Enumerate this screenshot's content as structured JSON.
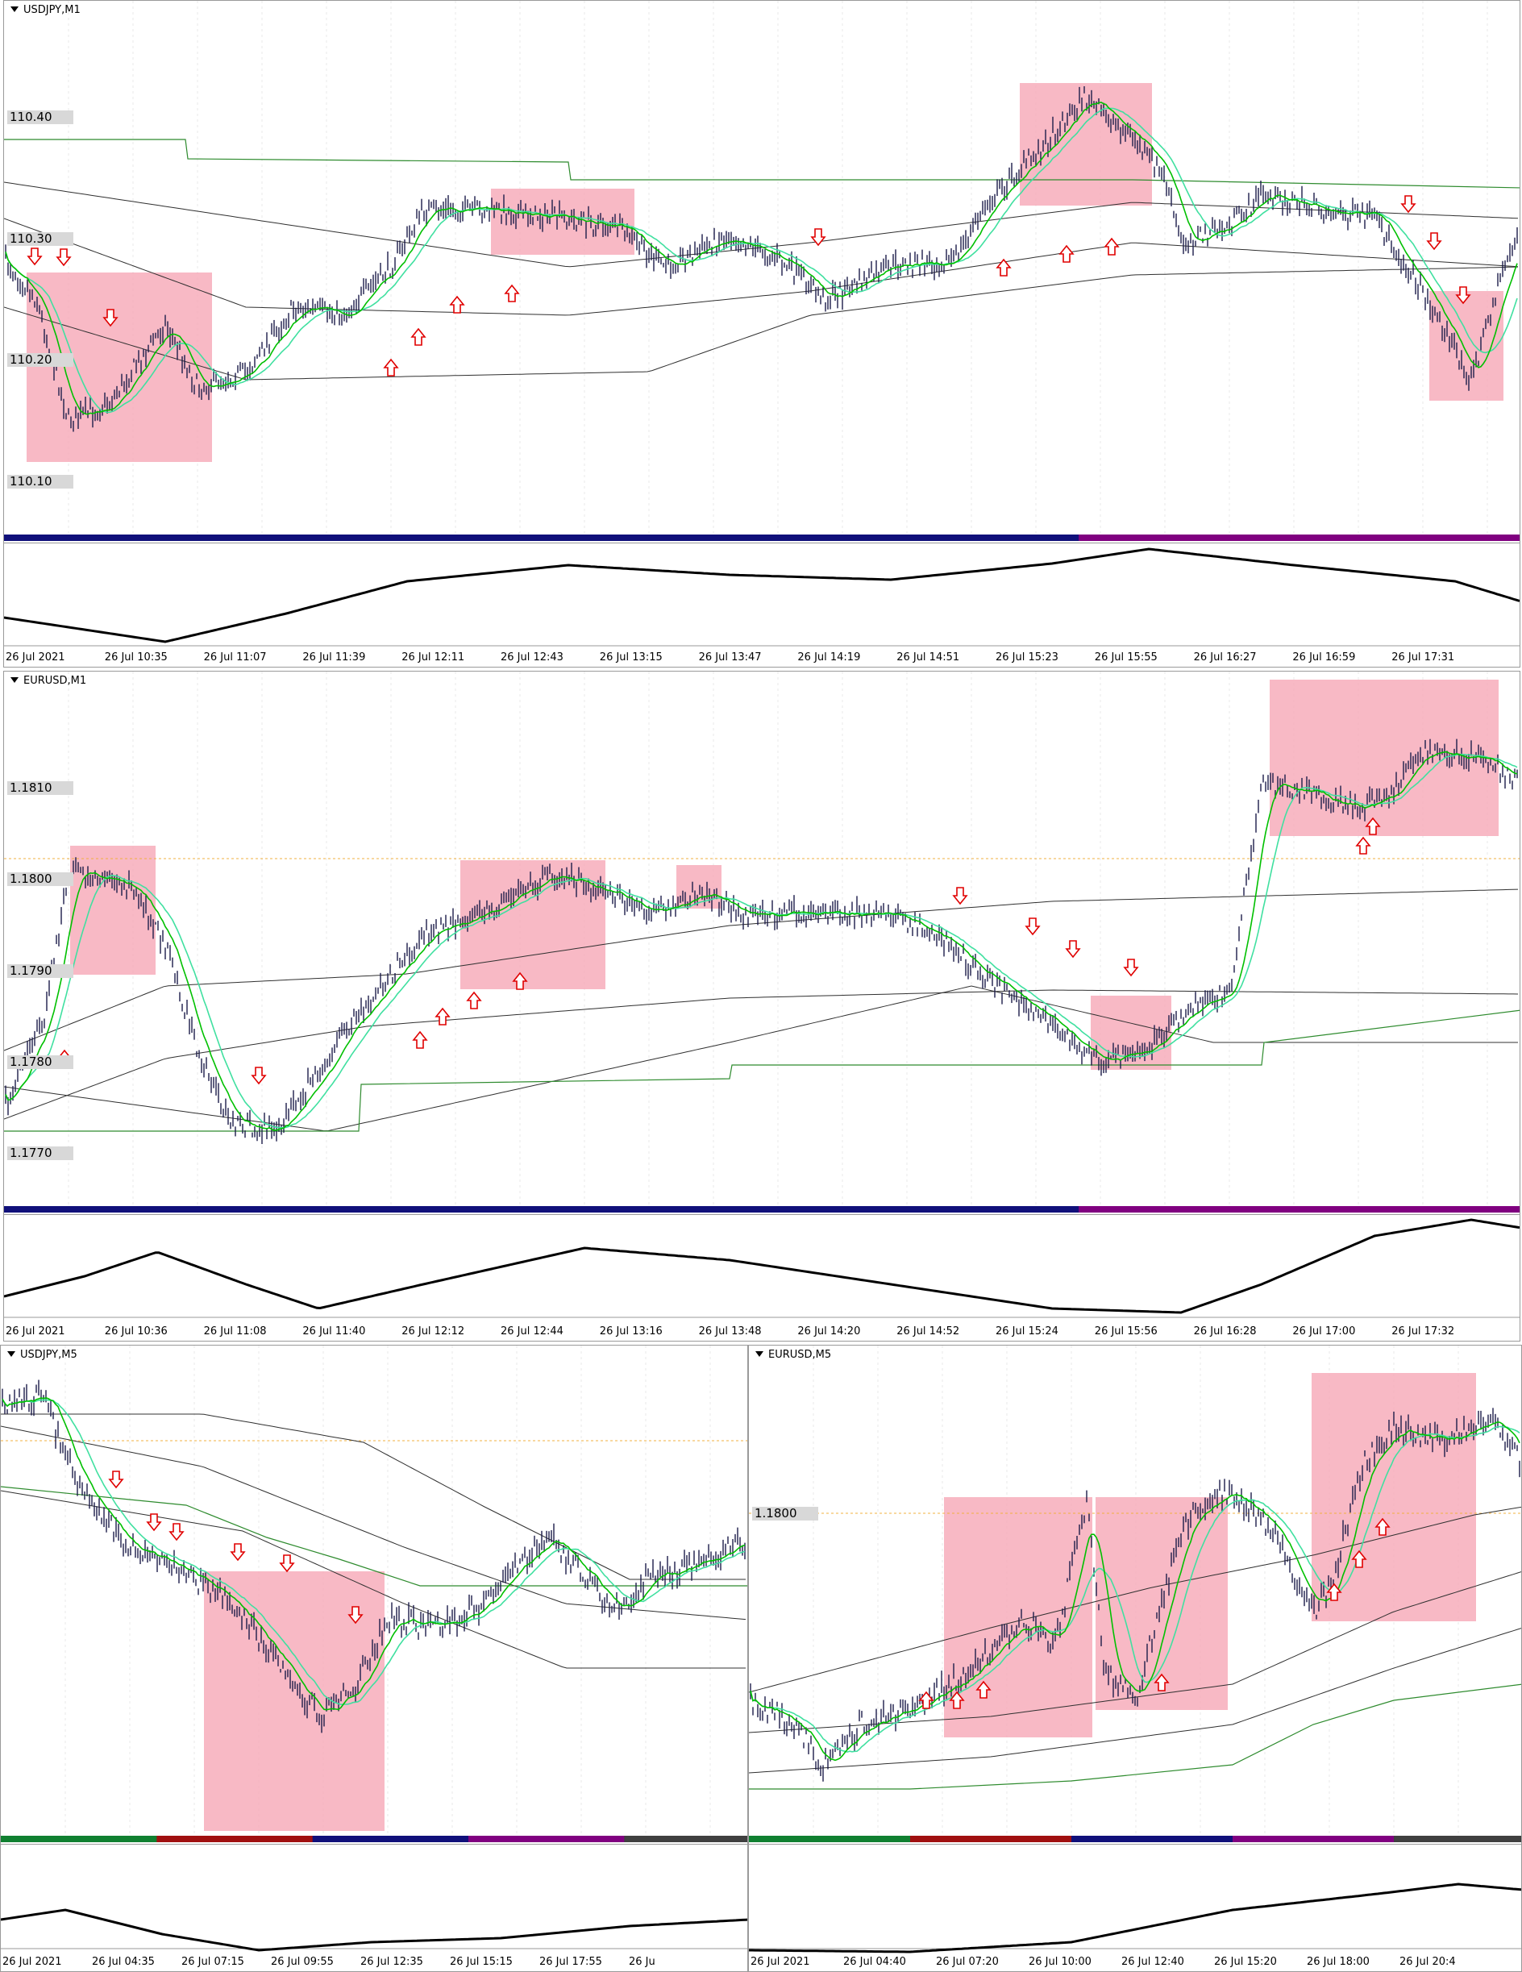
{
  "colors": {
    "candle": "#1c1c4a",
    "box": "#f7a9b8",
    "ma_green": "#00c000",
    "ma_light": "#40e0a0",
    "band": "#303030",
    "step": "#2e8b2e",
    "arrow": "#e00000",
    "level": "#f0b040"
  },
  "windows": [
    {
      "title": "USDJPY,M1",
      "price_labels": [
        "110.40",
        "110.30",
        "110.20",
        "110.10"
      ],
      "time_labels": [
        "26 Jul 2021",
        "26 Jul 10:35",
        "26 Jul 11:07",
        "26 Jul 11:39",
        "26 Jul 12:11",
        "26 Jul 12:43",
        "26 Jul 13:15",
        "26 Jul 13:47",
        "26 Jul 14:19",
        "26 Jul 14:51",
        "26 Jul 15:23",
        "26 Jul 15:55",
        "26 Jul 16:27",
        "26 Jul 16:59",
        "26 Jul 17:31"
      ]
    },
    {
      "title": "EURUSD,M1",
      "price_labels": [
        "1.1810",
        "1.1800",
        "1.1790",
        "1.1780",
        "1.1770"
      ],
      "time_labels": [
        "26 Jul 2021",
        "26 Jul 10:36",
        "26 Jul 11:08",
        "26 Jul 11:40",
        "26 Jul 12:12",
        "26 Jul 12:44",
        "26 Jul 13:16",
        "26 Jul 13:48",
        "26 Jul 14:20",
        "26 Jul 14:52",
        "26 Jul 15:24",
        "26 Jul 15:56",
        "26 Jul 16:28",
        "26 Jul 17:00",
        "26 Jul 17:32"
      ]
    },
    {
      "title": "USDJPY,M5",
      "price_labels": [],
      "time_labels": [
        "26 Jul 2021",
        "26 Jul 04:35",
        "26 Jul 07:15",
        "26 Jul 09:55",
        "26 Jul 12:35",
        "26 Jul 15:15",
        "26 Jul 17:55",
        "26 Ju"
      ]
    },
    {
      "title": "EURUSD,M5",
      "price_labels": [
        "1.1800"
      ],
      "time_labels": [
        "26 Jul 2021",
        "26 Jul 04:40",
        "26 Jul 07:20",
        "26 Jul 10:00",
        "26 Jul 12:40",
        "26 Jul 15:20",
        "26 Jul 18:00",
        "26 Jul 20:4"
      ]
    }
  ]
}
